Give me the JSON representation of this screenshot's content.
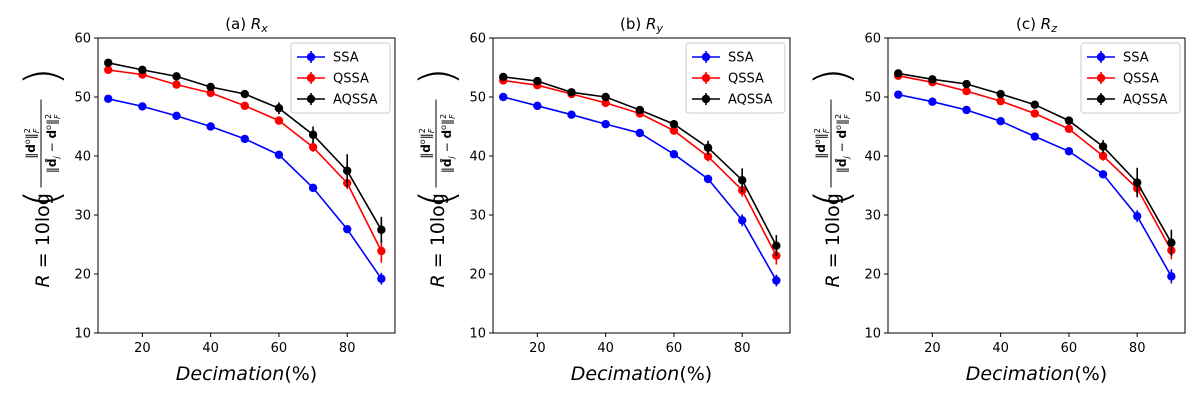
{
  "colors": {
    "SSA": "#0000ff",
    "QSSA": "#ff0000",
    "AQSSA": "#000000"
  },
  "chart_data": [
    {
      "type": "line",
      "title": "(a) R_x",
      "title_prefix": "(a) ",
      "title_var": "R",
      "title_sub": "x",
      "xlabel": "Decimation(%)",
      "ylabel": "R = 10log( ‖d°‖²_F / ‖d̂_j − d°‖²_F )",
      "ylim": [
        10,
        60
      ],
      "xlim": [
        7,
        94
      ],
      "xticks": [
        20,
        40,
        60,
        80
      ],
      "yticks": [
        10,
        20,
        30,
        40,
        50,
        60
      ],
      "legend": "top-right",
      "grid": false,
      "x": [
        10,
        20,
        30,
        40,
        50,
        60,
        70,
        80,
        90
      ],
      "series": [
        {
          "name": "SSA",
          "values": [
            49.7,
            48.4,
            46.8,
            45.0,
            42.9,
            40.2,
            34.6,
            27.6,
            19.2
          ],
          "err": [
            0.3,
            0.3,
            0.3,
            0.3,
            0.4,
            0.5,
            0.4,
            0.5,
            1.0
          ]
        },
        {
          "name": "QSSA",
          "values": [
            54.6,
            53.8,
            52.1,
            50.7,
            48.5,
            46.0,
            41.5,
            35.4,
            23.9
          ],
          "err": [
            0.4,
            0.4,
            0.5,
            0.5,
            0.5,
            0.6,
            0.8,
            1.0,
            2.0
          ]
        },
        {
          "name": "AQSSA",
          "values": [
            55.8,
            54.6,
            53.5,
            51.7,
            50.5,
            48.1,
            43.6,
            37.5,
            27.5
          ],
          "err": [
            0.4,
            0.4,
            0.5,
            0.6,
            0.6,
            1.0,
            1.4,
            2.8,
            2.2
          ]
        }
      ]
    },
    {
      "type": "line",
      "title": "(b) R_y",
      "title_prefix": "(b) ",
      "title_var": "R",
      "title_sub": "y",
      "xlabel": "Decimation(%)",
      "ylabel": "R = 10log( ‖d°‖²_F / ‖d̂_j − d°‖²_F )",
      "ylim": [
        10,
        60
      ],
      "xlim": [
        7,
        94
      ],
      "xticks": [
        20,
        40,
        60,
        80
      ],
      "yticks": [
        10,
        20,
        30,
        40,
        50,
        60
      ],
      "legend": "top-right",
      "grid": false,
      "x": [
        10,
        20,
        30,
        40,
        50,
        60,
        70,
        80,
        90
      ],
      "series": [
        {
          "name": "SSA",
          "values": [
            50.0,
            48.5,
            47.0,
            45.4,
            43.9,
            40.3,
            36.1,
            29.1,
            18.9
          ],
          "err": [
            0.3,
            0.3,
            0.3,
            0.3,
            0.4,
            0.4,
            0.5,
            1.0,
            1.0
          ]
        },
        {
          "name": "QSSA",
          "values": [
            52.8,
            52.0,
            50.5,
            49.0,
            47.2,
            44.3,
            39.9,
            34.2,
            23.1
          ],
          "err": [
            0.4,
            0.4,
            0.4,
            0.5,
            0.5,
            0.6,
            0.8,
            1.1,
            1.5
          ]
        },
        {
          "name": "AQSSA",
          "values": [
            53.4,
            52.7,
            50.8,
            50.0,
            47.8,
            45.4,
            41.4,
            35.9,
            24.8
          ],
          "err": [
            0.5,
            0.5,
            0.5,
            0.5,
            0.6,
            0.7,
            1.2,
            2.0,
            1.8
          ]
        }
      ]
    },
    {
      "type": "line",
      "title": "(c) R_z",
      "title_prefix": "(c) ",
      "title_var": "R",
      "title_sub": "z",
      "xlabel": "Decimation(%)",
      "ylabel": "R = 10log( ‖d°‖²_F / ‖d̂_j − d°‖²_F )",
      "ylim": [
        10,
        60
      ],
      "xlim": [
        7,
        94
      ],
      "xticks": [
        20,
        40,
        60,
        80
      ],
      "yticks": [
        10,
        20,
        30,
        40,
        50,
        60
      ],
      "legend": "top-right",
      "grid": false,
      "x": [
        10,
        20,
        30,
        40,
        50,
        60,
        70,
        80,
        90
      ],
      "series": [
        {
          "name": "SSA",
          "values": [
            50.4,
            49.2,
            47.8,
            45.9,
            43.3,
            40.8,
            36.9,
            29.8,
            19.6
          ],
          "err": [
            0.3,
            0.3,
            0.3,
            0.4,
            0.4,
            0.5,
            0.5,
            1.0,
            1.2
          ]
        },
        {
          "name": "QSSA",
          "values": [
            53.6,
            52.5,
            51.0,
            49.3,
            47.2,
            44.6,
            40.0,
            34.5,
            24.0
          ],
          "err": [
            0.4,
            0.4,
            0.4,
            0.5,
            0.5,
            0.6,
            0.8,
            1.2,
            1.5
          ]
        },
        {
          "name": "AQSSA",
          "values": [
            54.0,
            53.0,
            52.2,
            50.5,
            48.7,
            46.0,
            41.6,
            35.5,
            25.3
          ],
          "err": [
            0.4,
            0.4,
            0.5,
            0.5,
            0.6,
            0.7,
            1.1,
            2.5,
            2.2
          ]
        }
      ]
    }
  ]
}
